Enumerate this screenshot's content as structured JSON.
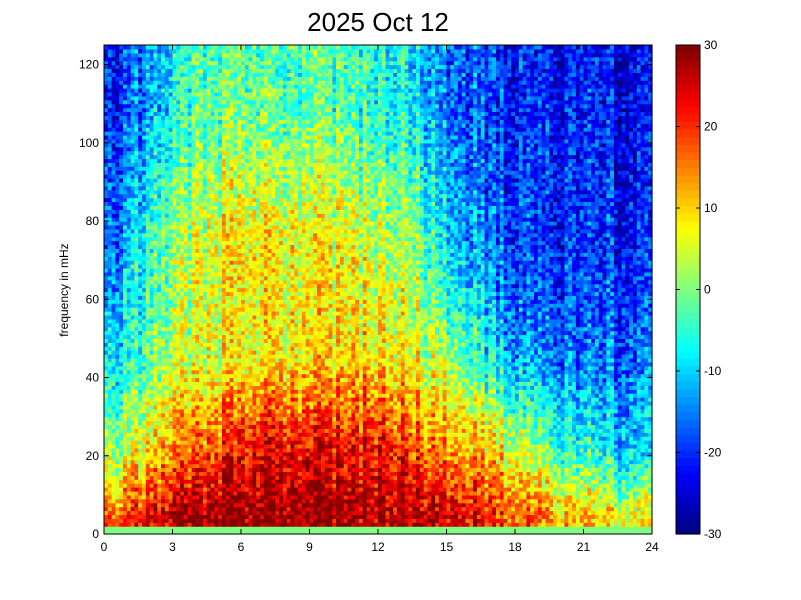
{
  "chart_data": {
    "type": "heatmap",
    "title": "2025 Oct 12",
    "xlabel": "",
    "ylabel": "frequency in mHz",
    "xlim": [
      0,
      24
    ],
    "ylim": [
      0,
      125
    ],
    "x_ticks": [
      0,
      3,
      6,
      9,
      12,
      15,
      18,
      21,
      24
    ],
    "y_ticks": [
      0,
      20,
      40,
      60,
      80,
      100,
      120
    ],
    "colorbar": {
      "colormap": "jet",
      "clim": [
        -30,
        30
      ],
      "ticks": [
        -30,
        -20,
        -10,
        0,
        10,
        20,
        30
      ]
    },
    "grid": false,
    "x_resolution_hours": 0.1667,
    "y_resolution_mhz": 1.0,
    "intensity_profile": {
      "description_points_x_hours": [
        0,
        1.5,
        3,
        4.5,
        6,
        7.5,
        9,
        10.5,
        12,
        13.5,
        15,
        16.5,
        18,
        19.5,
        21,
        22.5,
        24
      ],
      "low_freq_band_0_10_mhz": [
        15,
        22,
        26,
        28,
        30,
        30,
        29,
        28,
        28,
        27,
        25,
        22,
        18,
        14,
        10,
        8,
        8
      ],
      "band_10_30_mhz": [
        2,
        8,
        14,
        18,
        24,
        26,
        24,
        22,
        24,
        20,
        15,
        12,
        8,
        0,
        -5,
        -8,
        -8
      ],
      "band_30_60_mhz": [
        -10,
        -4,
        2,
        5,
        8,
        9,
        9,
        8,
        10,
        6,
        2,
        -5,
        -12,
        -15,
        -17,
        -16,
        -15
      ],
      "band_60_90_mhz": [
        -18,
        -8,
        0,
        5,
        10,
        8,
        8,
        6,
        4,
        2,
        -10,
        -15,
        -18,
        -20,
        -20,
        -20,
        -20
      ],
      "band_90_125_mhz": [
        -22,
        -15,
        -8,
        -3,
        0,
        -2,
        -2,
        -4,
        -5,
        -8,
        -16,
        -18,
        -20,
        -21,
        -22,
        -22,
        -22
      ]
    }
  }
}
